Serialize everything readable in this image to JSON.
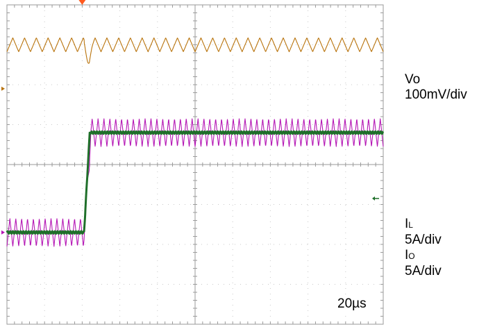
{
  "chart_data": {
    "type": "line",
    "title": "",
    "grid": true,
    "divisions": {
      "x": 10,
      "y": 8
    },
    "timebase": "20µs",
    "series": [
      {
        "name": "Vo",
        "scale": "100mV/div",
        "color": "#b8720a",
        "kind": "voltage_ripple",
        "level_div": 3.0,
        "ripple_pp_div": 0.35,
        "ripple_cycles": 32,
        "transient_at_div": 2.1,
        "dip_depth_div": 0.35
      },
      {
        "name": "IL",
        "scale": "5A/div",
        "color": "#b414b4",
        "kind": "inductor_current",
        "low_level_div": -1.7,
        "high_level_div": 0.8,
        "step_at_div": 2.05,
        "ripple_pp_div": 0.7,
        "ripple_cycles": 64
      },
      {
        "name": "IO",
        "scale": "5A/div",
        "color": "#1f6f2a",
        "kind": "output_current_step",
        "low_level_div": -1.7,
        "high_level_div": 0.8,
        "step_at_div": 2.05
      }
    ]
  },
  "labels": {
    "vo_name": "Vo",
    "vo_scale": "100mV/div",
    "il_main": "I",
    "il_sub": "L",
    "il_scale": "5A/div",
    "io_main": "I",
    "io_sub": "O",
    "io_scale": "5A/div",
    "timebase": "20µs"
  }
}
